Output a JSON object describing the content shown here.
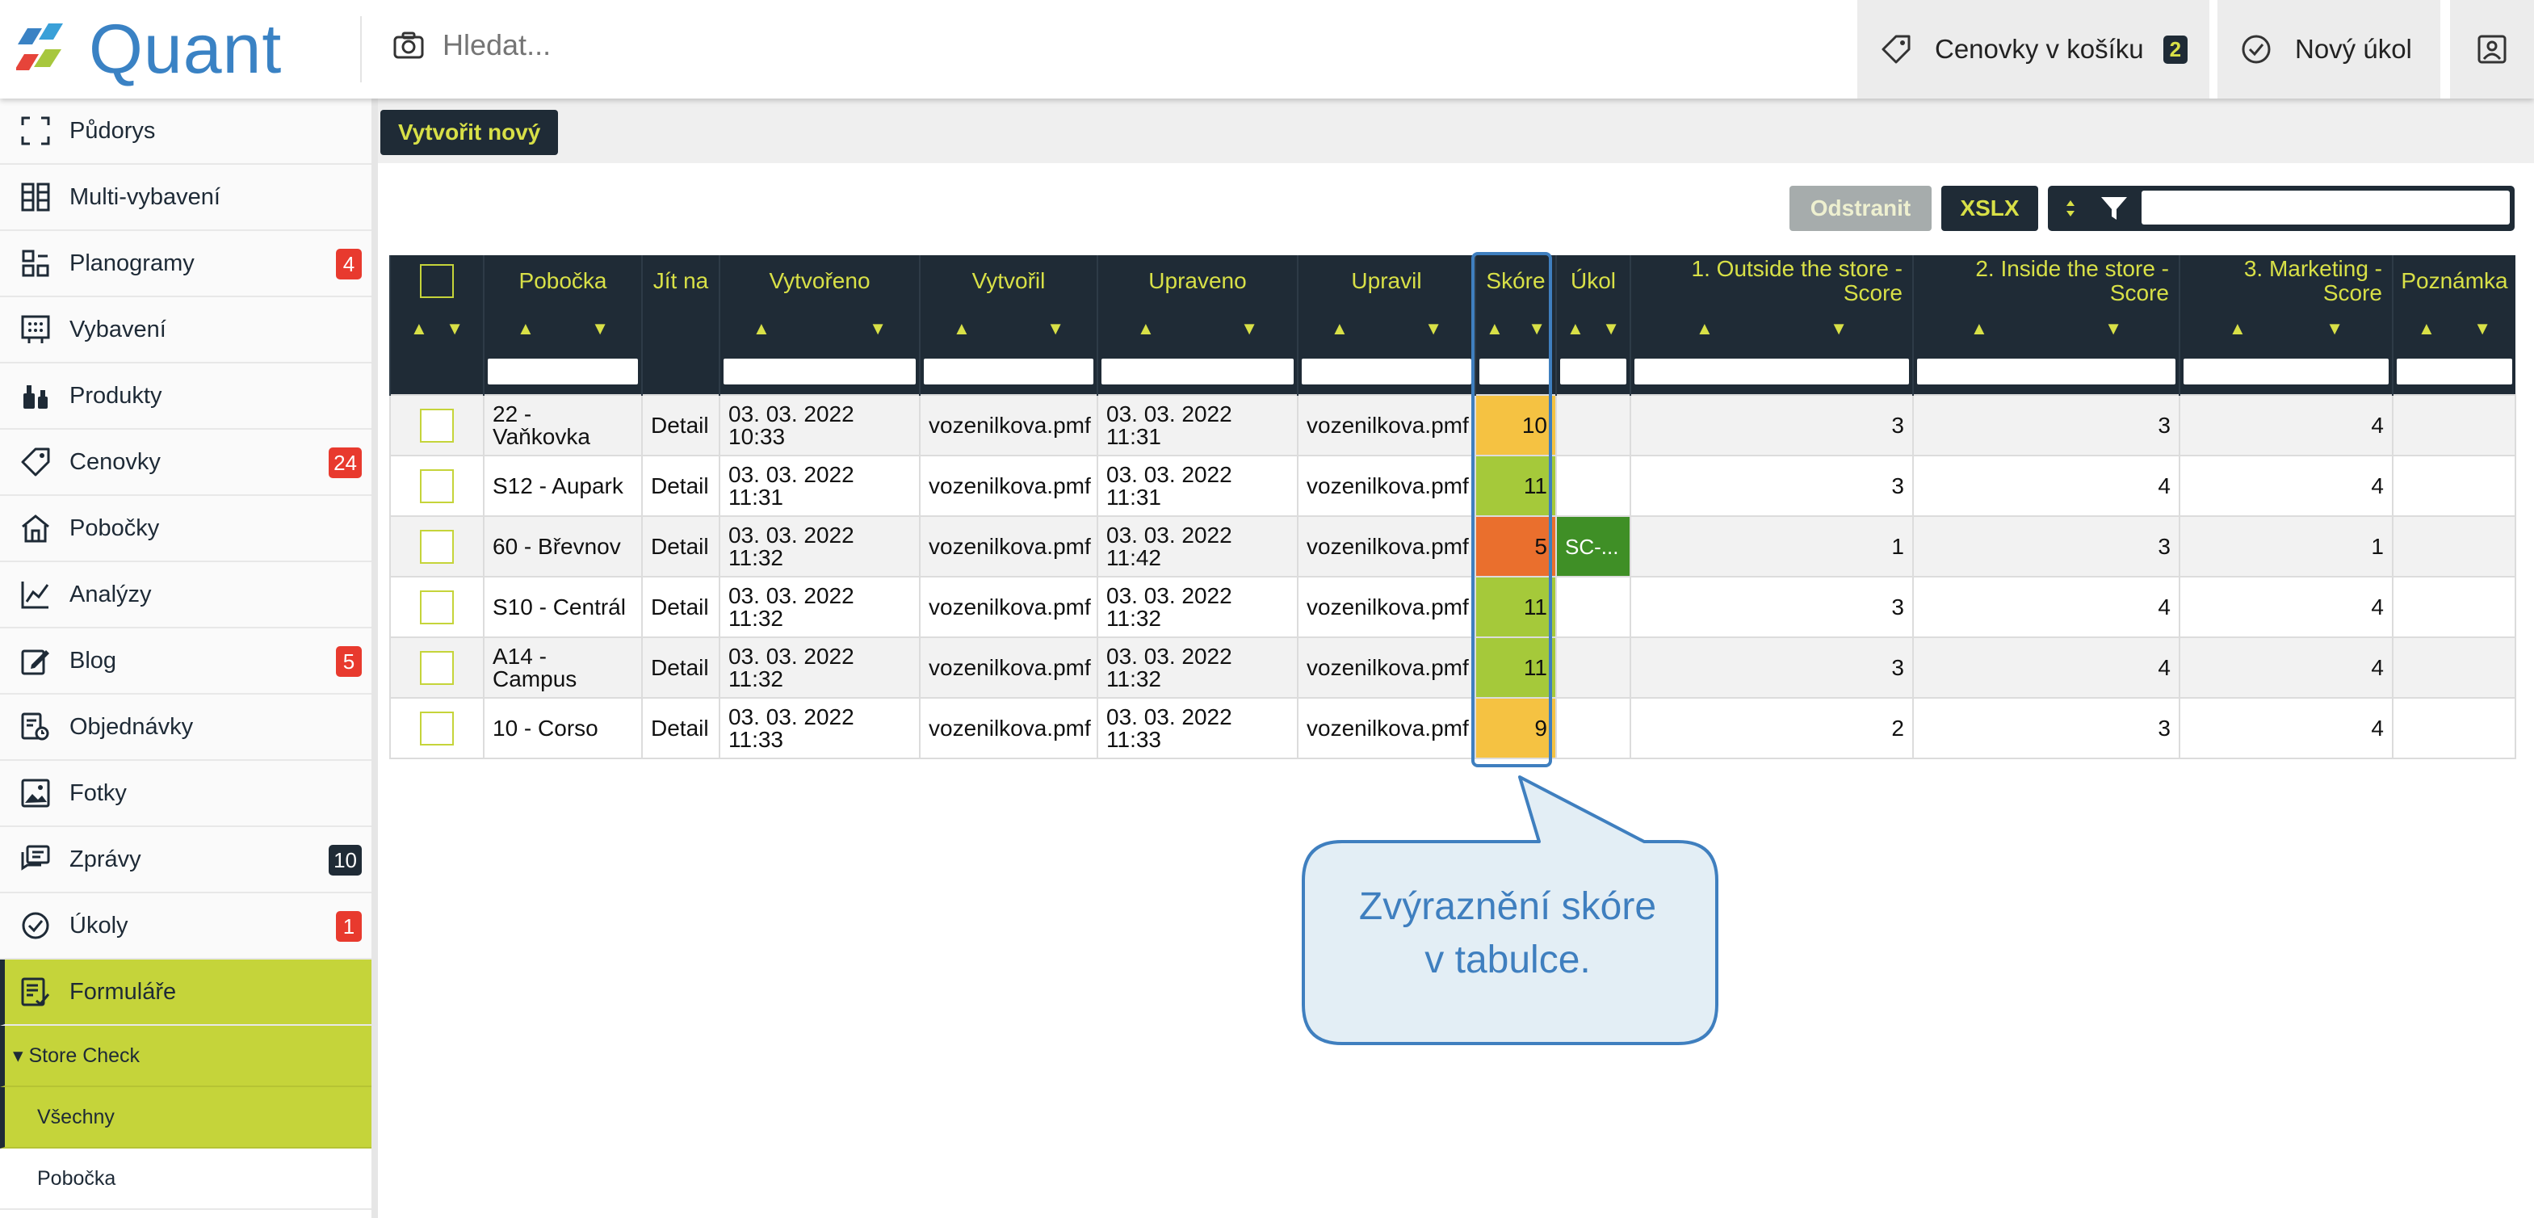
{
  "app": {
    "name": "Quant"
  },
  "header": {
    "search_placeholder": "Hledat...",
    "basket_label": "Cenovky v košíku",
    "basket_count": "2",
    "new_task_label": "Nový úkol"
  },
  "sidebar": {
    "items": [
      {
        "label": "Půdorys",
        "icon": "floorplan-icon",
        "count": ""
      },
      {
        "label": "Multi-vybavení",
        "icon": "shelves-icon",
        "count": ""
      },
      {
        "label": "Planogramy",
        "icon": "planogram-icon",
        "count": "4"
      },
      {
        "label": "Vybavení",
        "icon": "board-icon",
        "count": ""
      },
      {
        "label": "Produkty",
        "icon": "products-icon",
        "count": ""
      },
      {
        "label": "Cenovky",
        "icon": "price-tag-icon",
        "count": "24"
      },
      {
        "label": "Pobočky",
        "icon": "store-icon",
        "count": ""
      },
      {
        "label": "Analýzy",
        "icon": "chart-icon",
        "count": ""
      },
      {
        "label": "Blog",
        "icon": "edit-icon",
        "count": "5"
      },
      {
        "label": "Objednávky",
        "icon": "order-icon",
        "count": ""
      },
      {
        "label": "Fotky",
        "icon": "photo-icon",
        "count": ""
      },
      {
        "label": "Zprávy",
        "icon": "messages-icon",
        "count": "10"
      },
      {
        "label": "Úkoly",
        "icon": "check-circle-icon",
        "count": "1"
      },
      {
        "label": "Formuláře",
        "icon": "form-icon",
        "count": ""
      }
    ],
    "group_label": "▾ Store Check",
    "sub_items": [
      "Všechny",
      "Pobočka"
    ]
  },
  "toolbar": {
    "create_label": "Vytvořit nový",
    "remove_label": "Odstranit",
    "export_label": "XSLX",
    "filter_value": ""
  },
  "table": {
    "columns": [
      "",
      "Pobočka",
      "Jít na",
      "Vytvořeno",
      "Vytvořil",
      "Upraveno",
      "Upravil",
      "Skóre",
      "Úkol",
      "1. Outside the store - Score",
      "2. Inside the store - Score",
      "3. Marketing - Score",
      "Poznámka"
    ],
    "sort_up": "▲",
    "sort_down": "▼",
    "rows": [
      {
        "branch": "22 - Vaňkovka",
        "goto": "Detail",
        "created": "03. 03. 2022 10:33",
        "created_by": "vozenilkova.pmf",
        "updated": "03. 03. 2022 11:31",
        "updated_by": "vozenilkova.pmf",
        "score": "10",
        "score_color": "yel",
        "task": "",
        "s1": "3",
        "s2": "3",
        "s3": "4",
        "note": ""
      },
      {
        "branch": "S12 - Aupark",
        "goto": "Detail",
        "created": "03. 03. 2022 11:31",
        "created_by": "vozenilkova.pmf",
        "updated": "03. 03. 2022 11:31",
        "updated_by": "vozenilkova.pmf",
        "score": "11",
        "score_color": "grn",
        "task": "",
        "s1": "3",
        "s2": "4",
        "s3": "4",
        "note": ""
      },
      {
        "branch": "60 - Břevnov",
        "goto": "Detail",
        "created": "03. 03. 2022 11:32",
        "created_by": "vozenilkova.pmf",
        "updated": "03. 03. 2022 11:42",
        "updated_by": "vozenilkova.pmf",
        "score": "5",
        "score_color": "org",
        "task": "SC-...",
        "s1": "1",
        "s2": "3",
        "s3": "1",
        "note": ""
      },
      {
        "branch": "S10 - Centrál",
        "goto": "Detail",
        "created": "03. 03. 2022 11:32",
        "created_by": "vozenilkova.pmf",
        "updated": "03. 03. 2022 11:32",
        "updated_by": "vozenilkova.pmf",
        "score": "11",
        "score_color": "grn",
        "task": "",
        "s1": "3",
        "s2": "4",
        "s3": "4",
        "note": ""
      },
      {
        "branch": "A14 - Campus",
        "goto": "Detail",
        "created": "03. 03. 2022 11:32",
        "created_by": "vozenilkova.pmf",
        "updated": "03. 03. 2022 11:32",
        "updated_by": "vozenilkova.pmf",
        "score": "11",
        "score_color": "grn",
        "task": "",
        "s1": "3",
        "s2": "4",
        "s3": "4",
        "note": ""
      },
      {
        "branch": "10 - Corso",
        "goto": "Detail",
        "created": "03. 03. 2022 11:33",
        "created_by": "vozenilkova.pmf",
        "updated": "03. 03. 2022 11:33",
        "updated_by": "vozenilkova.pmf",
        "score": "9",
        "score_color": "yel",
        "task": "",
        "s1": "2",
        "s2": "3",
        "s3": "4",
        "note": ""
      }
    ]
  },
  "callout": {
    "line1": "Zvýraznění skóre",
    "line2": "v tabulce."
  },
  "colors": {
    "dark": "#1f2b36",
    "lime": "#c5d43a",
    "accent_text": "#d8e047",
    "brand_blue": "#3a82c4",
    "badge_red": "#e83a2e",
    "score_yellow": "#f5c242",
    "score_green": "#a5c93a",
    "score_orange": "#ea6f2d",
    "task_green": "#3f8f26"
  }
}
